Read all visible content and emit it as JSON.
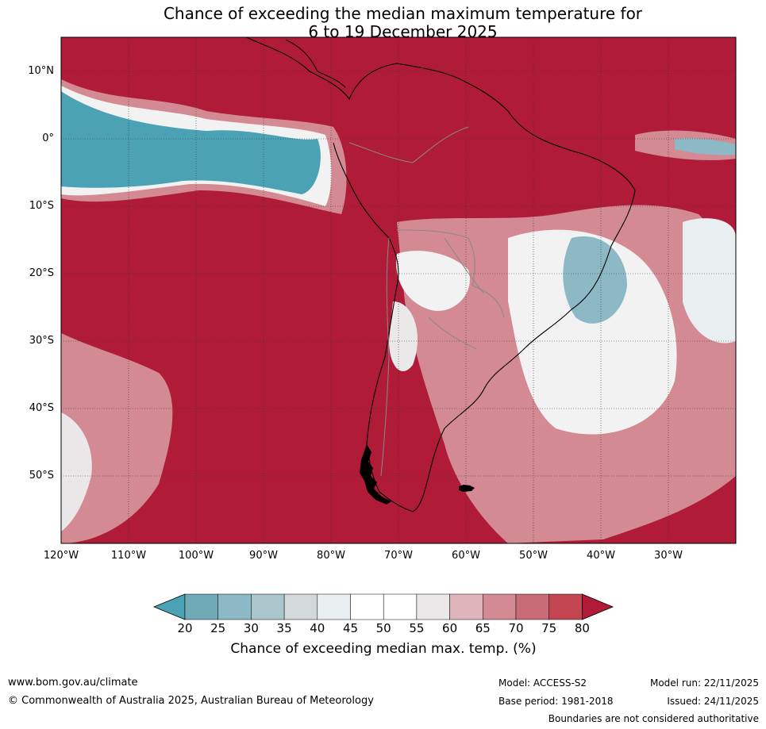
{
  "title_line1": "Chance of exceeding the median maximum temperature for",
  "title_line2": "6 to 19 December 2025",
  "map": {
    "lat_labels": [
      "10°N",
      "0°",
      "10°S",
      "20°S",
      "30°S",
      "40°S",
      "50°S"
    ],
    "lon_labels": [
      "120°W",
      "110°W",
      "100°W",
      "90°W",
      "80°W",
      "70°W",
      "60°W",
      "50°W",
      "40°W",
      "30°W"
    ]
  },
  "colorbar": {
    "ticks": [
      "20",
      "25",
      "30",
      "35",
      "40",
      "45",
      "50",
      "55",
      "60",
      "65",
      "70",
      "75",
      "80"
    ],
    "colors": [
      "#4aa2b4",
      "#6faab6",
      "#8cb9c5",
      "#aac5cb",
      "#d3d8da",
      "#e9eff1",
      "#ffffff",
      "#ffffff",
      "#eae8e9",
      "#dfb4ba",
      "#d38a93",
      "#c96c77",
      "#c24551",
      "#b01c38"
    ],
    "label": "Chance of exceeding median max. temp. (%)"
  },
  "footer": {
    "url": "www.bom.gov.au/climate",
    "copyright": "© Commonwealth of Australia 2025, Australian Bureau of Meteorology",
    "model": "Model: ACCESS-S2",
    "base_period": "Base period: 1981-2018",
    "model_run": "Model run: 22/11/2025",
    "issued": "Issued: 24/11/2025",
    "disclaimer": "Boundaries are not considered authoritative"
  }
}
